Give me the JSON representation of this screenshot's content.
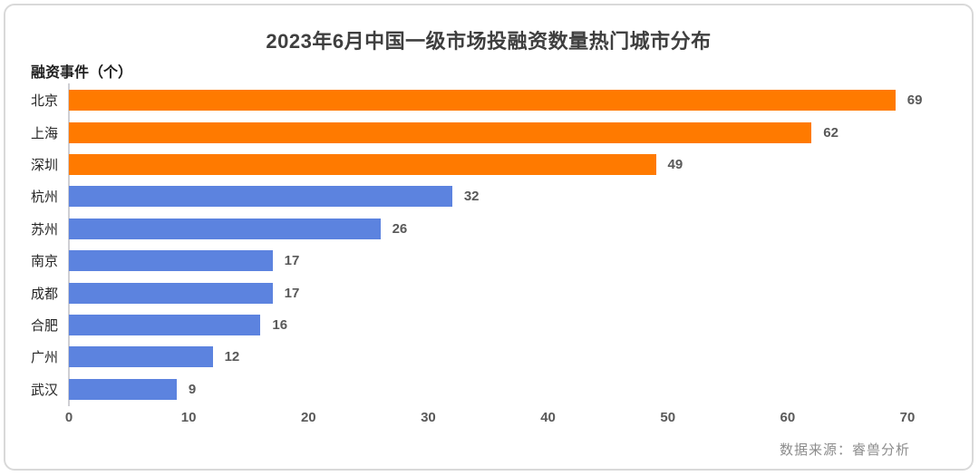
{
  "title": "2023年6月中国一级市场投融资数量热门城市分布",
  "source": "数据来源：睿兽分析",
  "colors": {
    "orange": "#ff7a00",
    "blue": "#5c83df",
    "title_text": "#3f3f3f",
    "value_text": "#595959",
    "axis_line": "#cfcfd4",
    "card_border": "#d9d9d9",
    "source_text": "#8c8c8c"
  },
  "chart_data": {
    "type": "bar",
    "orientation": "horizontal",
    "title": "2023年6月中国一级市场投融资数量热门城市分布",
    "ylabel": "融资事件（个）",
    "xlabel": "",
    "categories": [
      "北京",
      "上海",
      "深圳",
      "杭州",
      "苏州",
      "南京",
      "成都",
      "合肥",
      "广州",
      "武汉"
    ],
    "values": [
      69,
      62,
      49,
      32,
      26,
      17,
      17,
      16,
      12,
      9
    ],
    "bar_colors": [
      "#ff7a00",
      "#ff7a00",
      "#ff7a00",
      "#5c83df",
      "#5c83df",
      "#5c83df",
      "#5c83df",
      "#5c83df",
      "#5c83df",
      "#5c83df"
    ],
    "xlim": [
      0,
      70
    ],
    "x_ticks": [
      0,
      10,
      20,
      30,
      40,
      50,
      60,
      70
    ],
    "grid": false,
    "legend": "none",
    "value_labels": true,
    "source": "数据来源：睿兽分析"
  }
}
